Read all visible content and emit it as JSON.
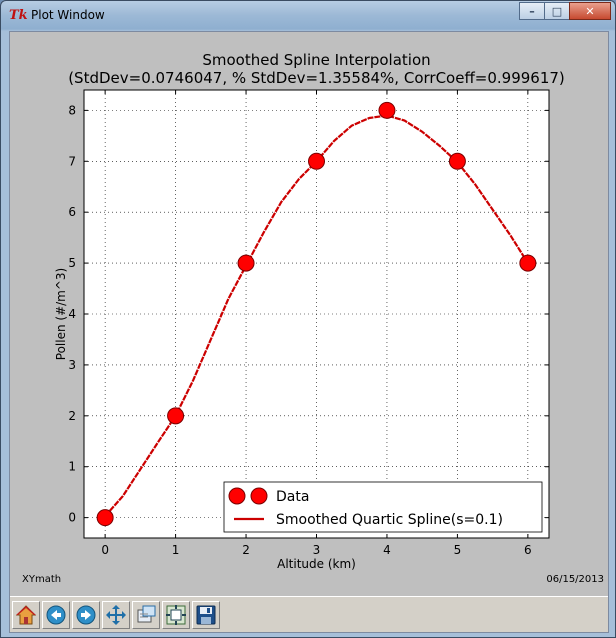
{
  "window": {
    "icon_text": "Tk",
    "title": "Plot Window",
    "minimize_label": "–",
    "maximize_label": "□",
    "close_label": "✕"
  },
  "footer": {
    "left_text": "XYmath",
    "right_text": "06/15/2013"
  },
  "toolbar": {
    "buttons": [
      {
        "name": "home-icon"
      },
      {
        "name": "back-arrow-icon"
      },
      {
        "name": "forward-arrow-icon"
      },
      {
        "name": "pan-move-icon"
      },
      {
        "name": "zoom-rectangle-icon"
      },
      {
        "name": "configure-subplots-icon"
      },
      {
        "name": "save-floppy-icon"
      }
    ]
  },
  "colors": {
    "data_marker": "#ff0000",
    "spline_line": "#cc0000",
    "grid": "#000000",
    "figure_bg": "#bfbfbf",
    "axes_bg": "#ffffff"
  },
  "chart_data": {
    "type": "line",
    "title": "Smoothed Spline Interpolation",
    "subtitle": "(StdDev=0.0746047, % StdDev=1.35584%, CorrCoeff=0.999617)",
    "xlabel": "Altitude (km)",
    "ylabel": "Pollen (#/m^3)",
    "xlim": [
      -0.3,
      6.3
    ],
    "ylim": [
      -0.4,
      8.4
    ],
    "xticks": [
      0,
      1,
      2,
      3,
      4,
      5,
      6
    ],
    "yticks": [
      0,
      1,
      2,
      3,
      4,
      5,
      6,
      7,
      8
    ],
    "grid": true,
    "legend_position": "lower-right",
    "series": [
      {
        "name": "Data",
        "kind": "markers",
        "x": [
          0,
          1,
          2,
          3,
          4,
          5,
          6
        ],
        "y": [
          0,
          2,
          5,
          7,
          8,
          7,
          5
        ]
      },
      {
        "name": "Smoothed Quartic Spline(s=0.1)",
        "kind": "line",
        "x": [
          0,
          0.25,
          0.5,
          0.75,
          1,
          1.25,
          1.5,
          1.75,
          2,
          2.25,
          2.5,
          2.75,
          3,
          3.25,
          3.5,
          3.75,
          4,
          4.25,
          4.5,
          4.75,
          5,
          5.25,
          5.5,
          5.75,
          6
        ],
        "y": [
          0.03,
          0.42,
          0.95,
          1.48,
          2.0,
          2.7,
          3.5,
          4.3,
          4.95,
          5.6,
          6.2,
          6.65,
          7.0,
          7.4,
          7.7,
          7.85,
          7.9,
          7.8,
          7.58,
          7.3,
          6.98,
          6.55,
          6.05,
          5.55,
          5.0
        ]
      }
    ]
  }
}
